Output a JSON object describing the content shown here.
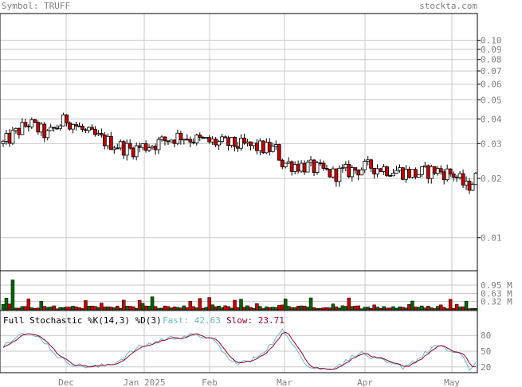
{
  "header": {
    "symbol_text": "Symbol: TRUFF",
    "site_text": "stockta.com"
  },
  "colors": {
    "background": "#ffffff",
    "plot_bg": "#ffffff",
    "grid": "#c8c8c8",
    "frame": "#000000",
    "header_text": "#808080",
    "up_candle": "#ffffff",
    "down_candle": "#cc0000",
    "volume_up": "#006600",
    "volume_down": "#cc0000",
    "fast_line": "#66bbbb",
    "slow_line": "#990033"
  },
  "chart_data": [
    {
      "type": "candlestick",
      "panel": "price",
      "y_scale": "log",
      "ylim": [
        0.0078,
        0.14
      ],
      "y_ticks": [
        {
          "value": 0.1,
          "label": "0.10"
        },
        {
          "value": 0.09,
          "label": "0.09"
        },
        {
          "value": 0.08,
          "label": "0.08"
        },
        {
          "value": 0.07,
          "label": "0.07"
        },
        {
          "value": 0.06,
          "label": "0.06"
        },
        {
          "value": 0.05,
          "label": "0.05"
        },
        {
          "value": 0.04,
          "label": "0.04"
        },
        {
          "value": 0.03,
          "label": "0.03"
        },
        {
          "value": 0.02,
          "label": "0.02"
        },
        {
          "value": 0.01,
          "label": "0.01"
        }
      ],
      "x_ticks": [
        "Dec",
        "Jan 2025",
        "Feb",
        "Mar",
        "Apr",
        "May"
      ],
      "grid": true,
      "key_points": [
        {
          "period": "mid Nov",
          "approx_close": 0.032
        },
        {
          "period": "late Nov peak",
          "approx_high": 0.045
        },
        {
          "period": "Jan",
          "approx_close": 0.031
        },
        {
          "period": "Feb",
          "approx_close": 0.03
        },
        {
          "period": "Mar",
          "approx_close": 0.023
        },
        {
          "period": "Apr",
          "approx_close": 0.022
        },
        {
          "period": "May low",
          "approx_low": 0.016
        },
        {
          "period": "last",
          "approx_close": 0.019
        }
      ]
    },
    {
      "type": "bar",
      "panel": "volume",
      "y_ticks": [
        {
          "value": 0.95,
          "label": "0.95 M"
        },
        {
          "value": 0.63,
          "label": "0.63 M"
        },
        {
          "value": 0.32,
          "label": "0.32 M"
        }
      ],
      "ylim": [
        0,
        1.2
      ],
      "peak_value": 1.15
    },
    {
      "type": "line",
      "panel": "stochastic",
      "title": "Full Stochastic %K(14,3) %D(3)",
      "series": [
        {
          "name": "Fast",
          "last_value_label": "42.63"
        },
        {
          "name": "Slow",
          "last_value_label": "23.71"
        }
      ],
      "fast_label": "Fast: 42.63",
      "slow_label": "Slow: 23.71",
      "ylim": [
        0,
        100
      ],
      "y_ticks": [
        {
          "value": 80,
          "label": "80"
        },
        {
          "value": 50,
          "label": "50"
        },
        {
          "value": 20,
          "label": "20"
        }
      ]
    }
  ]
}
